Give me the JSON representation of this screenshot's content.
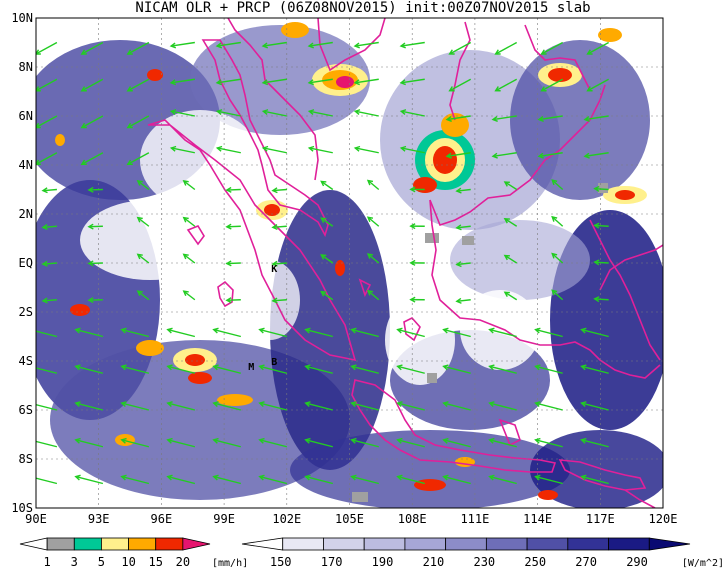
{
  "title": "NICAM OLR + PRCP (06Z08NOV2015) init:00Z07NOV2015 slab",
  "map": {
    "lat_labels": [
      "10N",
      "8N",
      "6N",
      "4N",
      "2N",
      "EQ",
      "2S",
      "4S",
      "6S",
      "8S",
      "10S"
    ],
    "lon_labels": [
      "90E",
      "93E",
      "96E",
      "99E",
      "102E",
      "105E",
      "108E",
      "111E",
      "114E",
      "117E",
      "120E"
    ],
    "point_labels": [
      {
        "text": "K",
        "lon": 101.4,
        "lat": -0.2
      },
      {
        "text": "M",
        "lon": 100.3,
        "lat": -4.2
      },
      {
        "text": "B",
        "lon": 101.4,
        "lat": -4.0
      }
    ]
  },
  "prcp_legend": {
    "unit": "[mm/h]",
    "ticks": [
      "1",
      "3",
      "5",
      "10",
      "15",
      "20"
    ],
    "colors": [
      "#ffffff",
      "#a0a0a0",
      "#00c896",
      "#fff08c",
      "#ffaa00",
      "#f02800",
      "#e6146e"
    ]
  },
  "olr_legend": {
    "unit": "[W/m^2]",
    "ticks": [
      "150",
      "170",
      "190",
      "210",
      "230",
      "250",
      "270",
      "290"
    ],
    "colors": [
      "#ffffff",
      "#e8e8f4",
      "#d2d2ea",
      "#bcbce0",
      "#a6a6d6",
      "#8c8cc8",
      "#6e6eb8",
      "#5050a6",
      "#323296",
      "#1a1a84",
      "#0a0a72"
    ]
  },
  "colors": {
    "coast": "#e0209a",
    "wind": "#22cc22",
    "grid": "#7a7a7a"
  }
}
